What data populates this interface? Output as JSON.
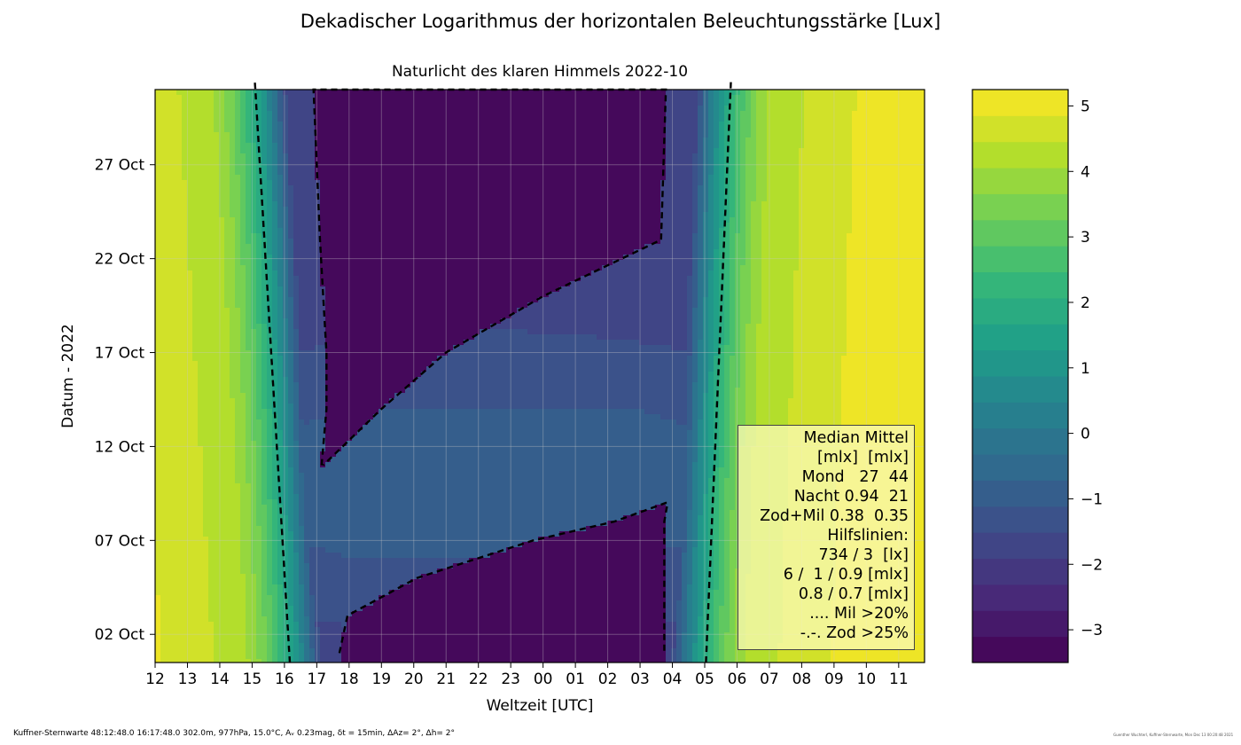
{
  "title": "Dekadischer Logarithmus der horizontalen Beleuchtungsstärke [Lux]",
  "footer": {
    "left": "Kuffner-Sternwarte 48:12:48.0 16:17:48.0 302.0m,  977hPa, 15.0°C, Aᵥ 0.23mag, δt = 15min, ΔAz=  2°, Δh= 2°",
    "right": "Guenther Wuchterl, Kuffner-Sternwarte, Mon Dec 13 00:20:48 2021"
  },
  "chart_data": {
    "type": "heatmap",
    "title": "Naturlicht des klaren Himmels 2022-10",
    "xlabel": "Weltzeit [UTC]",
    "ylabel": "Datum - 2022",
    "x_range_hours_utc": [
      12,
      35.8
    ],
    "x_ticks": [
      "12",
      "13",
      "14",
      "15",
      "16",
      "17",
      "18",
      "19",
      "20",
      "21",
      "22",
      "23",
      "00",
      "01",
      "02",
      "03",
      "04",
      "05",
      "06",
      "07",
      "08",
      "09",
      "10",
      "11"
    ],
    "y_range_dates": [
      "2022-10-01",
      "2022-10-31"
    ],
    "y_ticks": [
      "02 Oct",
      "07 Oct",
      "12 Oct",
      "17 Oct",
      "22 Oct",
      "27 Oct"
    ],
    "y_tick_dates": [
      "2022-10-02",
      "2022-10-07",
      "2022-10-12",
      "2022-10-17",
      "2022-10-22",
      "2022-10-27"
    ],
    "colorbar": {
      "range": [
        -3.5,
        5.25
      ],
      "ticks": [
        "−3",
        "−2",
        "−1",
        "0",
        "1",
        "2",
        "3",
        "4",
        "5"
      ],
      "tick_values": [
        -3,
        -2,
        -1,
        0,
        1,
        2,
        3,
        4,
        5
      ],
      "colormap": "viridis"
    },
    "grid": true,
    "day_level": 4.3,
    "night_level": -3.2,
    "moonlit_level": -1.2,
    "full_moon_peak": -0.95,
    "full_moon_date": "2022-10-10",
    "sunset_utc": {
      "2022-10-01": 16.6,
      "2022-10-31": 15.55
    },
    "sunrise_utc": {
      "2022-10-01": 28.5,
      "2022-10-31": 29.25
    },
    "dark_night_lower": [
      {
        "date": "2022-10-01",
        "start": 17.7,
        "end": 27.75
      },
      {
        "date": "2022-10-03",
        "start": 17.95,
        "end": 27.75
      },
      {
        "date": "2022-10-05",
        "start": 20.1,
        "end": 27.75
      },
      {
        "date": "2022-10-07",
        "start": 23.7,
        "end": 27.75
      },
      {
        "date": "2022-10-08",
        "start": 26.2,
        "end": 27.75
      },
      {
        "date": "2022-10-09",
        "start": 27.8,
        "end": 27.85
      }
    ],
    "dark_night_upper": [
      {
        "date": "2022-10-11",
        "start": 17.15,
        "end": 17.2
      },
      {
        "date": "2022-10-14",
        "start": 17.3,
        "end": 19.0
      },
      {
        "date": "2022-10-17",
        "start": 17.3,
        "end": 21.0
      },
      {
        "date": "2022-10-20",
        "start": 17.2,
        "end": 24.0
      },
      {
        "date": "2022-10-23",
        "start": 17.1,
        "end": 27.65
      },
      {
        "date": "2022-10-31",
        "start": 16.9,
        "end": 27.8
      }
    ],
    "legend": {
      "lines": [
        "Median Mittel",
        "[mlx]  [mlx]",
        "Mond   27  44",
        "Nacht 0.94  21",
        "Zod+Mil 0.38  0.35",
        "Hilfslinien:",
        "734 / 3  [lx]",
        "6 /  1 / 0.9 [mlx]",
        "0.8 / 0.7 [mlx]",
        ".... Mil >20%",
        "-.-. Zod >25%"
      ]
    }
  }
}
